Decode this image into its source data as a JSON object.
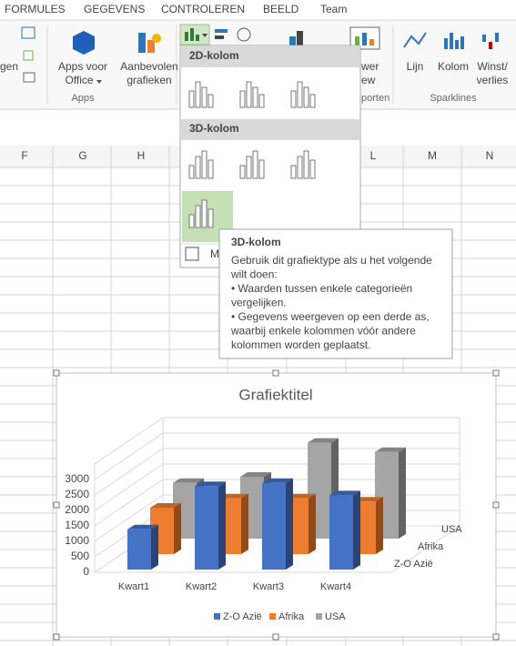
{
  "tabs": [
    "FORMULES",
    "GEGEVENS",
    "CONTROLEREN",
    "BEELD",
    "Team"
  ],
  "ribbon": {
    "left_label": "gen",
    "apps_button": [
      "Apps voor",
      "Office"
    ],
    "recommended_button": [
      "Aanbevolen",
      "grafieken"
    ],
    "apps_group": "Apps",
    "power_view": [
      "wer",
      "ew"
    ],
    "reports_group": "porten",
    "sparkline_buttons": [
      "Lijn",
      "Kolom",
      "Winst/",
      "verlies"
    ],
    "sparklines_group": "Sparklines"
  },
  "gallery": {
    "section_2d": "2D-kolom",
    "section_3d": "3D-kolom",
    "more": "M"
  },
  "tooltip": {
    "title": "3D-kolom",
    "lines": [
      "Gebruik dit grafiektype als u het volgende",
      "wilt doen:",
      "• Waarden tussen enkele categorieën",
      "vergelijken.",
      "• Gegevens weergeven op een derde as,",
      "waarbij enkele kolommen vóór andere",
      "kolommen worden geplaatst."
    ]
  },
  "columns": [
    "F",
    "G",
    "H",
    "L",
    "M",
    "N"
  ],
  "chart_data": {
    "type": "bar3d",
    "title": "Grafiektitel",
    "categories": [
      "Kwart1",
      "Kwart2",
      "Kwart3",
      "Kwart4"
    ],
    "series": [
      {
        "name": "Z-O Azië",
        "color": "#4472c4",
        "values": [
          1300,
          2700,
          2800,
          2400
        ]
      },
      {
        "name": "Afrika",
        "color": "#ed7d31",
        "values": [
          1500,
          1800,
          1800,
          1700
        ]
      },
      {
        "name": "USA",
        "color": "#a5a5a5",
        "values": [
          1800,
          2000,
          3100,
          2800
        ]
      }
    ],
    "ylim": [
      0,
      3500
    ],
    "yticks": [
      0,
      500,
      1000,
      1500,
      2000,
      2500,
      3000
    ],
    "grid": true
  }
}
